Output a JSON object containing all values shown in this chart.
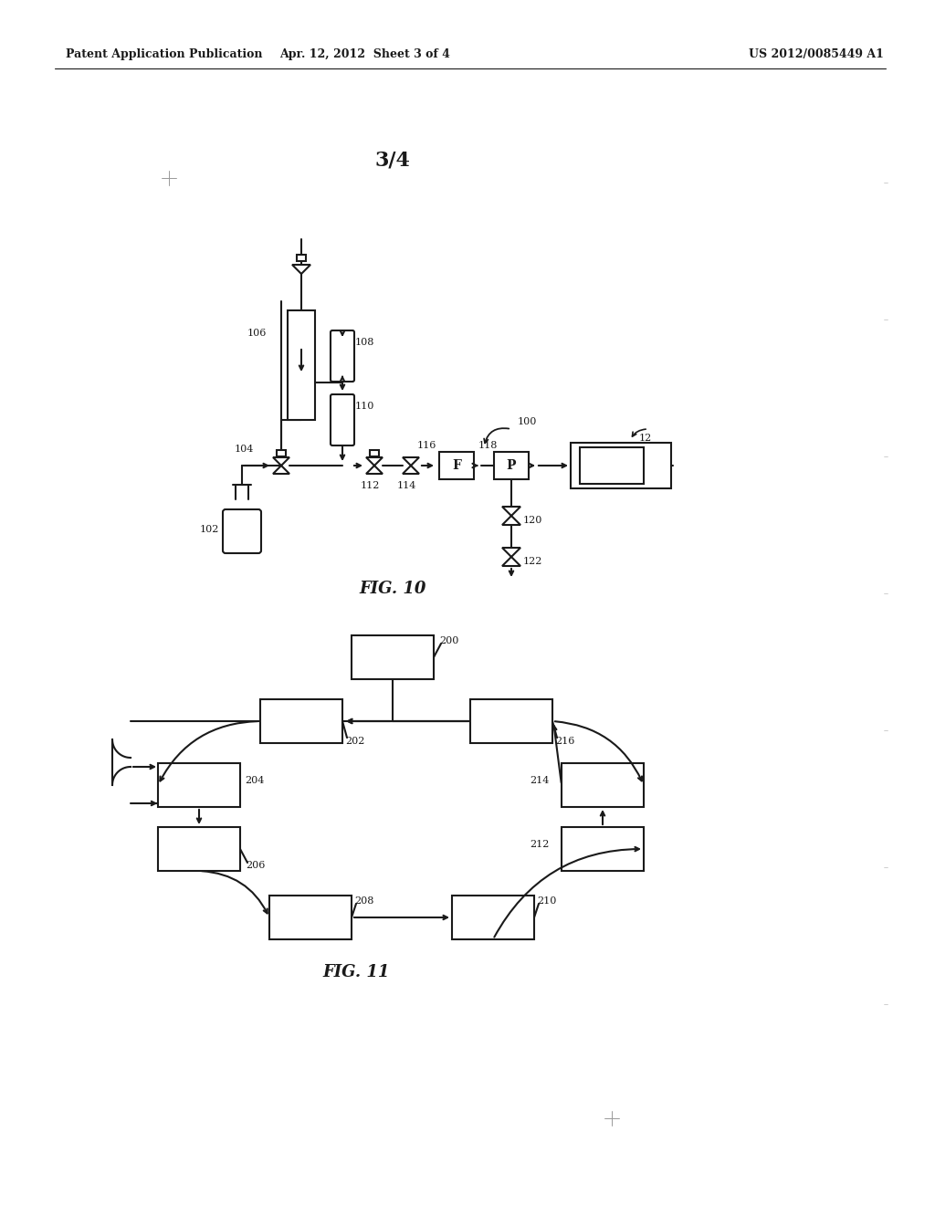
{
  "header_left": "Patent Application Publication",
  "header_mid": "Apr. 12, 2012  Sheet 3 of 4",
  "header_right": "US 2012/0085449 A1",
  "page_label": "3/4",
  "fig10_label": "FIG. 10",
  "fig11_label": "FIG. 11",
  "background": "#ffffff",
  "line_color": "#1a1a1a"
}
